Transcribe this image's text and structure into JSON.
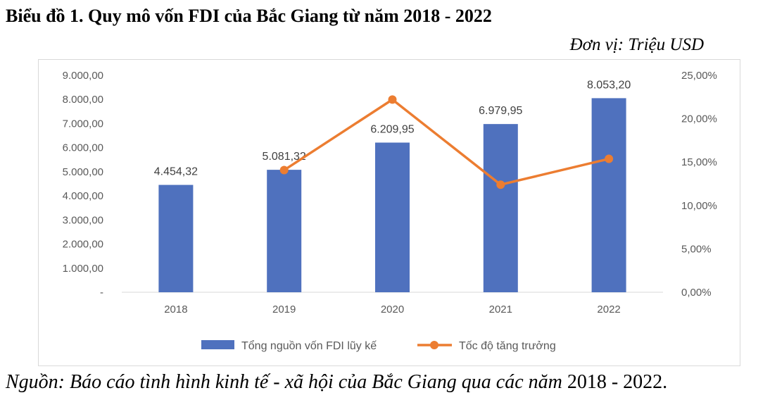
{
  "title": "Biểu đồ 1. Quy mô vốn FDI của Bắc Giang từ năm 2018 - 2022",
  "unit": "Đơn vị: Triệu USD",
  "source_italic": "Nguồn: Báo cáo tình hình kinh tế - xã hội của Bắc Giang qua các năm",
  "source_plain": " 2018 - 2022.",
  "colors": {
    "bar": "#4f71be",
    "line": "#ec7d31",
    "axis_text": "#595959",
    "grid_axis": "#d9d9d9"
  },
  "chart_data": {
    "type": "bar",
    "categories": [
      "2018",
      "2019",
      "2020",
      "2021",
      "2022"
    ],
    "ylim": [
      0,
      9000
    ],
    "y2lim": [
      0,
      25
    ],
    "y_ticks": [
      "-",
      "1.000,00",
      "2.000,00",
      "3.000,00",
      "4.000,00",
      "5.000,00",
      "6.000,00",
      "7.000,00",
      "8.000,00",
      "9.000,00"
    ],
    "y2_ticks": [
      "0,00%",
      "5,00%",
      "10,00%",
      "15,00%",
      "20,00%",
      "25,00%"
    ],
    "series": [
      {
        "name": "Tổng nguồn vốn FDI lũy kế",
        "type": "bar",
        "axis": "left",
        "values": [
          4454.32,
          5081.32,
          6209.95,
          6979.95,
          8053.2
        ],
        "labels": [
          "4.454,32",
          "5.081,32",
          "6.209,95",
          "6.979,95",
          "8.053,20"
        ]
      },
      {
        "name": "Tốc độ tăng trưởng",
        "type": "line",
        "axis": "right",
        "values": [
          null,
          14.08,
          22.21,
          12.4,
          15.38
        ]
      }
    ],
    "legend_position": "bottom"
  }
}
